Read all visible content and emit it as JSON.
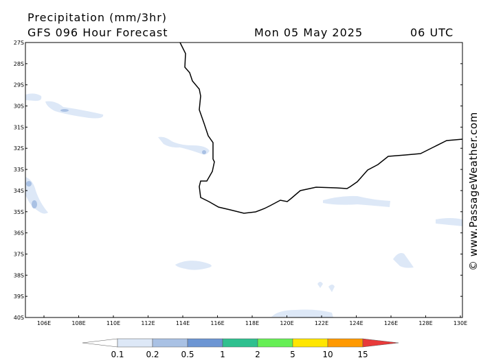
{
  "header": {
    "title": "Precipitation (mm/3hr)",
    "subtitle": "GFS 096 Hour Forecast",
    "date": "Mon 05 May 2025",
    "time": "06 UTC"
  },
  "map": {
    "lat_labels": [
      "27S",
      "28S",
      "29S",
      "30S",
      "31S",
      "32S",
      "33S",
      "34S",
      "35S",
      "36S",
      "37S",
      "38S",
      "39S",
      "40S"
    ],
    "lon_labels": [
      "106E",
      "108E",
      "110E",
      "112E",
      "114E",
      "116E",
      "118E",
      "120E",
      "122E",
      "124E",
      "126E",
      "128E",
      "130E"
    ]
  },
  "legend": {
    "labels": [
      "0.1",
      "0.2",
      "0.5",
      "1",
      "2",
      "5",
      "10",
      "15"
    ]
  },
  "credit": "© www.PassageWeather.com"
}
